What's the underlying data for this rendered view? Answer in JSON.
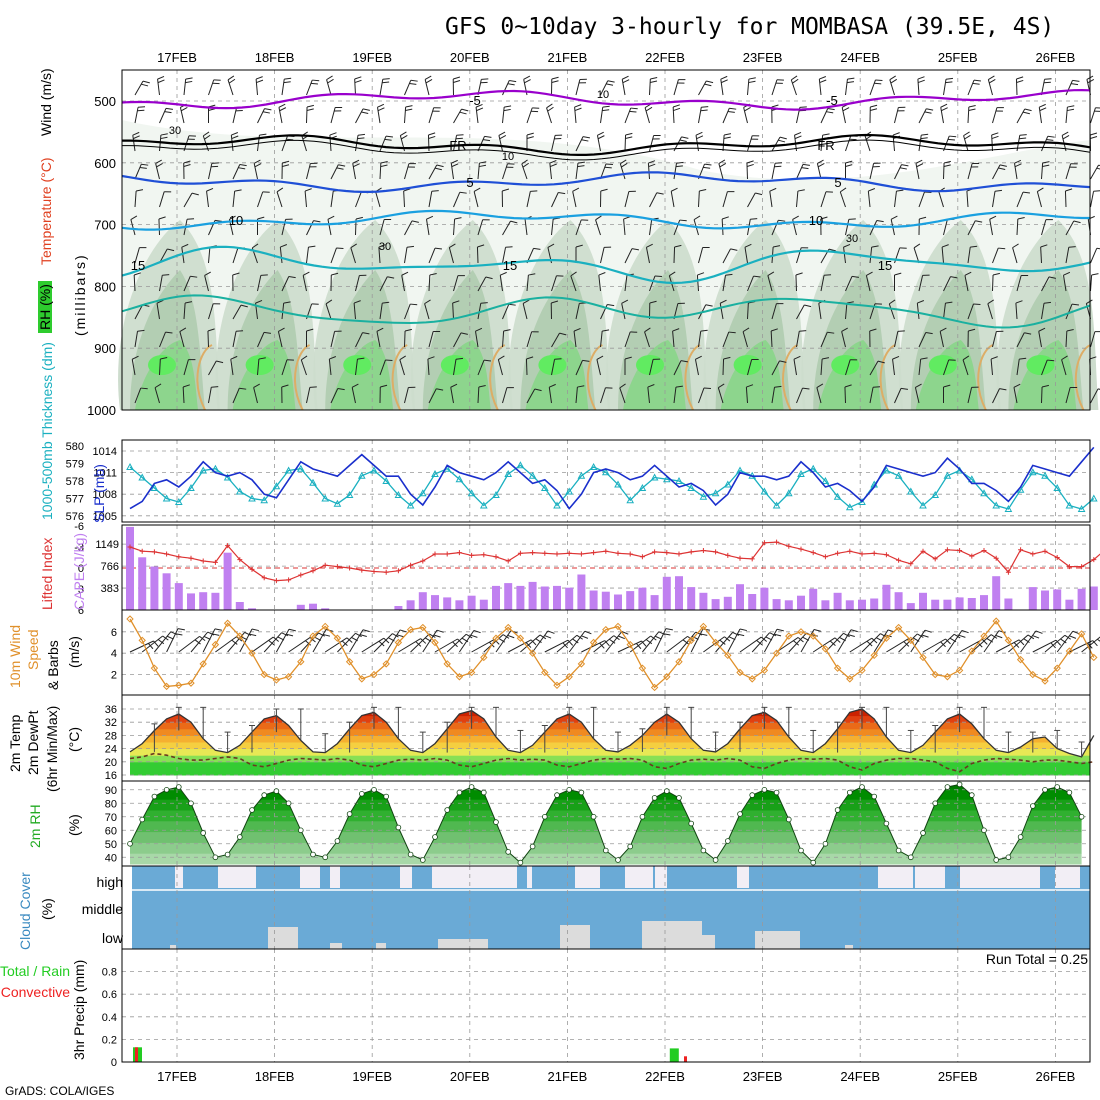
{
  "title": "GFS 0~10day 3-hourly for MOMBASA (39.5E, 4S)",
  "footer": "GrADS: COLA/IGES",
  "date_labels": [
    "17FEB",
    "18FEB",
    "19FEB",
    "20FEB",
    "21FEB",
    "22FEB",
    "23FEB",
    "24FEB",
    "25FEB",
    "26FEB"
  ],
  "panel_labels": {
    "rh": "RH (%)",
    "temp": "Temperature (°C)",
    "wind": "Wind (m/s)",
    "mb": "(millibars)",
    "thk": "1000-500mb Thickness (dm)",
    "slp": "SLP (mb)",
    "li": "Lifted Index",
    "cape": "CAPE (J/kg)",
    "w10a": "10m Wind",
    "w10b": "Speed",
    "w10c": "& Barbs",
    "w10d": "(m/s)",
    "t2a": "2m Temp",
    "t2b": "2m DewPt",
    "t2c": "(6hr Min/Max)",
    "t2d": "(°C)",
    "rh2a": "2m RH",
    "rh2b": "(%)",
    "cc": "Cloud Cover",
    "ccb": "(%)",
    "cc_high": "high",
    "cc_middle": "middle",
    "cc_low": "low",
    "pr1": "Total / Rain",
    "pr2": "Convective",
    "pr3": "3hr Precip (mm)",
    "run_total": "Run Total = 0.25"
  },
  "colors": {
    "rh_green": "#2ecc2e",
    "temp_purple": "#9900cc",
    "temp_blue": "#1f4fd6",
    "thickness": "#1ab0c0",
    "slp": "#1a2fcc",
    "lifted_index": "#dd3333",
    "cape": "#c080f0",
    "wind10": "#e0902a",
    "cloud": "#6aaad6",
    "rain": "#22cc22",
    "convective": "#ee2222"
  },
  "chart_data": [
    {
      "panel": "upper-air",
      "type": "heatmap",
      "xlabel": "",
      "ylabel": "(millibars)",
      "ylim": [
        1000,
        450
      ],
      "yticks": [
        500,
        600,
        700,
        800,
        900,
        1000
      ],
      "isotherm_labels": [
        "-5",
        "FR",
        "5",
        "10",
        "15"
      ],
      "rh_contour_labels": [
        "10",
        "30"
      ]
    },
    {
      "panel": "thickness-slp",
      "type": "line",
      "y_left_ticks": [
        576,
        577,
        578,
        579,
        580
      ],
      "y_right_ticks": [
        1005,
        1008,
        1011,
        1014
      ],
      "series": [
        {
          "name": "1000-500mb Thickness (dm)",
          "axis": "left",
          "values": [
            578.8,
            578.2,
            577.6,
            577.0,
            576.8,
            577.6,
            578.6,
            578.7,
            578.2,
            577.4,
            577.0,
            576.9,
            577.7,
            578.6,
            578.7,
            577.9,
            577.0,
            576.7,
            577.2,
            578.3,
            578.6,
            578.0,
            577.2,
            576.6,
            577.3,
            578.4,
            578.7,
            578.1,
            577.3,
            576.6,
            577.2,
            578.4,
            578.9,
            578.3,
            577.6,
            576.6,
            577.4,
            578.3,
            578.8,
            578.5,
            577.8,
            576.9,
            577.6,
            578.2,
            578.1,
            578.0,
            577.6,
            577.1,
            577.3,
            577.8,
            578.6,
            578.3,
            577.4,
            576.6,
            577.3,
            578.4,
            578.7,
            578.0,
            577.1,
            576.5,
            576.8,
            577.8,
            578.6,
            578.3,
            577.4,
            576.6,
            577.2,
            578.3,
            578.6,
            578.1,
            577.3,
            576.6,
            576.4,
            577.5,
            578.5,
            578.3,
            577.6,
            576.6,
            576.4,
            577.0
          ]
        },
        {
          "name": "SLP (mb)",
          "axis": "right",
          "values": [
            1006.0,
            1007.0,
            1009.5,
            1010.0,
            1009.0,
            1010.5,
            1012.5,
            1011.0,
            1010.5,
            1011.0,
            1010.0,
            1008.0,
            1007.5,
            1010.0,
            1012.5,
            1011.5,
            1011.0,
            1010.5,
            1012.0,
            1013.5,
            1012.0,
            1010.5,
            1010.5,
            1008.0,
            1006.5,
            1009.0,
            1012.0,
            1011.0,
            1010.5,
            1010.0,
            1011.0,
            1012.5,
            1011.0,
            1009.5,
            1010.0,
            1008.5,
            1006.0,
            1008.0,
            1011.0,
            1011.5,
            1011.0,
            1010.0,
            1010.5,
            1012.0,
            1010.5,
            1009.0,
            1009.5,
            1008.5,
            1006.5,
            1008.0,
            1011.0,
            1010.5,
            1010.5,
            1010.0,
            1010.5,
            1012.5,
            1011.0,
            1009.0,
            1009.5,
            1008.5,
            1007.0,
            1009.0,
            1012.0,
            1011.5,
            1011.0,
            1010.5,
            1011.0,
            1013.0,
            1011.5,
            1009.5,
            1009.5,
            1008.5,
            1007.0,
            1009.0,
            1012.0,
            1011.5,
            1011.0,
            1010.5,
            1012.5,
            1014.5
          ]
        }
      ]
    },
    {
      "panel": "lifted-index-cape",
      "type": "bar",
      "y_left_ticks": [
        -6,
        -3,
        0,
        3,
        6
      ],
      "y_right_ticks": [
        383,
        766,
        1149
      ],
      "series": [
        {
          "name": "Lifted Index",
          "type": "line",
          "values": [
            -3.0,
            -2.4,
            -2.3,
            -2.0,
            -1.6,
            -1.4,
            -1.0,
            -0.8,
            -3.2,
            -1.2,
            0.2,
            1.4,
            1.8,
            1.7,
            1.0,
            0.4,
            -0.4,
            -0.2,
            0.0,
            0.3,
            0.5,
            0.6,
            0.4,
            -0.4,
            -1.0,
            -2.0,
            -2.0,
            -2.2,
            -1.8,
            -1.9,
            -1.6,
            -1.0,
            -2.1,
            -2.2,
            -2.1,
            -2.0,
            -2.1,
            -2.0,
            -2.2,
            -2.4,
            -2.1,
            -2.0,
            -1.6,
            -2.3,
            -2.2,
            -2.0,
            -2.3,
            -2.5,
            -2.3,
            -1.8,
            -1.4,
            -1.3,
            -3.6,
            -3.7,
            -3.1,
            -2.7,
            -2.2,
            -1.6,
            -2.1,
            -2.4,
            -2.0,
            -2.1,
            -1.9,
            -1.1,
            -0.6,
            -2.4,
            -1.3,
            -2.6,
            -2.5,
            -1.7,
            -2.5,
            -1.4,
            0.6,
            -2.6,
            -2.0,
            -2.4,
            -1.5,
            -0.2,
            -0.2,
            -1.2,
            -2.7
          ]
        },
        {
          "name": "CAPE (J/kg)",
          "type": "bar",
          "values": [
            1450,
            920,
            760,
            640,
            470,
            290,
            310,
            300,
            1000,
            140,
            30,
            0,
            0,
            0,
            90,
            110,
            30,
            0,
            0,
            0,
            0,
            0,
            70,
            170,
            310,
            260,
            220,
            170,
            250,
            180,
            420,
            470,
            420,
            490,
            410,
            420,
            390,
            620,
            340,
            320,
            270,
            330,
            390,
            260,
            580,
            590,
            400,
            300,
            190,
            230,
            450,
            280,
            390,
            190,
            170,
            250,
            370,
            170,
            300,
            170,
            180,
            200,
            440,
            310,
            120,
            300,
            180,
            180,
            220,
            210,
            260,
            590,
            200,
            0,
            400,
            340,
            360,
            180,
            370,
            410
          ]
        }
      ]
    },
    {
      "panel": "wind-10m",
      "type": "line",
      "yticks": [
        2,
        4,
        6
      ],
      "series": [
        {
          "name": "10m Wind Speed",
          "values": [
            7.2,
            5.2,
            2.6,
            0.9,
            1.0,
            1.2,
            3.0,
            4.8,
            6.8,
            5.6,
            4.0,
            2.0,
            1.5,
            1.8,
            3.2,
            5.6,
            6.5,
            5.4,
            3.2,
            1.6,
            2.0,
            3.0,
            5.0,
            6.2,
            6.4,
            5.0,
            3.0,
            1.8,
            2.2,
            3.6,
            5.4,
            6.4,
            5.4,
            4.0,
            2.2,
            1.0,
            1.8,
            3.0,
            5.0,
            6.2,
            6.5,
            4.8,
            2.6,
            0.8,
            1.8,
            3.2,
            5.2,
            6.5,
            5.0,
            3.8,
            2.2,
            1.6,
            2.4,
            4.0,
            5.6,
            6.0,
            5.6,
            4.4,
            2.6,
            1.6,
            2.4,
            3.8,
            5.4,
            6.4,
            5.2,
            3.6,
            2.0,
            1.8,
            2.4,
            4.2,
            5.6,
            7.0,
            5.2,
            3.4,
            2.0,
            1.4,
            2.6,
            4.2,
            5.8,
            3.6
          ]
        }
      ]
    },
    {
      "panel": "temp-2m",
      "type": "area",
      "yticks": [
        16,
        20,
        24,
        28,
        32,
        36
      ],
      "series": [
        {
          "name": "2m Temp",
          "values": [
            23.0,
            25.5,
            29.5,
            33.0,
            34.5,
            32.0,
            27.0,
            23.5,
            22.8,
            25.0,
            29.0,
            33.0,
            34.0,
            31.0,
            26.5,
            23.0,
            22.8,
            25.5,
            30.0,
            34.0,
            35.0,
            32.0,
            27.0,
            23.5,
            22.8,
            25.5,
            30.0,
            34.5,
            35.5,
            33.0,
            27.5,
            23.5,
            22.8,
            25.0,
            29.0,
            33.0,
            34.5,
            32.0,
            27.0,
            23.5,
            23.0,
            25.0,
            28.0,
            32.0,
            34.5,
            32.0,
            27.0,
            23.5,
            23.0,
            25.5,
            30.0,
            34.0,
            35.0,
            32.5,
            27.5,
            23.5,
            22.8,
            25.5,
            30.0,
            35.0,
            36.0,
            33.0,
            27.5,
            23.5,
            22.8,
            25.0,
            29.0,
            33.0,
            34.5,
            31.5,
            27.0,
            23.5,
            22.8,
            24.5,
            27.0,
            27.5,
            24.0,
            22.5,
            21.5,
            28.0
          ]
        },
        {
          "name": "2m DewPt",
          "values": [
            21.0,
            21.5,
            22.5,
            22.0,
            21.0,
            20.5,
            20.5,
            21.0,
            21.5,
            21.0,
            19.0,
            18.5,
            19.5,
            20.5,
            21.0,
            20.8,
            20.5,
            21.0,
            20.5,
            19.0,
            18.5,
            19.5,
            20.5,
            20.8,
            20.5,
            21.0,
            20.5,
            19.0,
            18.5,
            19.5,
            20.5,
            21.0,
            20.5,
            20.8,
            20.5,
            19.0,
            18.5,
            19.5,
            20.5,
            21.0,
            20.8,
            21.0,
            20.5,
            18.5,
            18.0,
            19.5,
            20.5,
            20.8,
            20.5,
            21.0,
            20.5,
            18.5,
            18.0,
            19.5,
            20.5,
            21.0,
            20.8,
            21.0,
            20.5,
            18.5,
            17.5,
            19.5,
            20.5,
            21.0,
            21.0,
            20.5,
            20.0,
            18.0,
            17.0,
            19.5,
            20.5,
            21.0,
            20.8,
            20.5,
            20.0,
            20.5,
            20.5,
            20.0,
            19.5,
            20.0
          ]
        }
      ]
    },
    {
      "panel": "rh-2m",
      "type": "area",
      "yticks": [
        40,
        50,
        60,
        70,
        80,
        90
      ],
      "series": [
        {
          "name": "2m RH",
          "values": [
            50,
            68,
            85,
            90,
            92,
            80,
            58,
            40,
            42,
            55,
            75,
            86,
            89,
            80,
            60,
            42,
            40,
            52,
            72,
            87,
            90,
            85,
            62,
            42,
            38,
            55,
            75,
            88,
            92,
            88,
            66,
            44,
            36,
            48,
            70,
            86,
            90,
            88,
            70,
            45,
            38,
            48,
            70,
            84,
            89,
            84,
            65,
            45,
            38,
            52,
            72,
            86,
            90,
            88,
            68,
            45,
            36,
            50,
            75,
            88,
            92,
            85,
            65,
            45,
            40,
            58,
            80,
            92,
            94,
            86,
            60,
            38,
            40,
            55,
            78,
            90,
            92,
            88,
            70
          ]
        }
      ]
    },
    {
      "panel": "cloud-cover",
      "type": "bar",
      "categories": [
        "high",
        "middle",
        "low"
      ]
    },
    {
      "panel": "precip",
      "type": "bar",
      "yticks": [
        0,
        0.2,
        0.4,
        0.6,
        0.8
      ],
      "series": [
        {
          "name": "Total / Rain",
          "values": [
            0.13,
            0,
            0,
            0,
            0,
            0,
            0,
            0,
            0,
            0,
            0,
            0,
            0,
            0,
            0,
            0,
            0,
            0,
            0,
            0,
            0,
            0,
            0,
            0,
            0,
            0,
            0,
            0,
            0,
            0,
            0,
            0,
            0,
            0,
            0,
            0,
            0,
            0,
            0,
            0,
            0,
            0,
            0,
            0,
            0.12,
            0,
            0,
            0,
            0,
            0,
            0,
            0,
            0,
            0,
            0,
            0,
            0,
            0,
            0,
            0,
            0,
            0,
            0,
            0,
            0,
            0,
            0,
            0,
            0,
            0,
            0,
            0,
            0,
            0,
            0,
            0,
            0,
            0,
            0,
            0
          ]
        },
        {
          "name": "Convective",
          "values": [
            0.13,
            0,
            0,
            0,
            0,
            0,
            0,
            0,
            0,
            0,
            0,
            0,
            0,
            0,
            0,
            0,
            0,
            0,
            0,
            0,
            0,
            0,
            0,
            0,
            0,
            0,
            0,
            0,
            0,
            0,
            0,
            0,
            0,
            0,
            0,
            0,
            0,
            0,
            0,
            0,
            0,
            0,
            0,
            0,
            0,
            0.05,
            0,
            0,
            0,
            0,
            0,
            0,
            0,
            0,
            0,
            0,
            0,
            0,
            0,
            0,
            0,
            0,
            0,
            0,
            0,
            0,
            0,
            0,
            0,
            0,
            0,
            0,
            0,
            0,
            0,
            0,
            0,
            0,
            0,
            0
          ]
        }
      ]
    }
  ]
}
